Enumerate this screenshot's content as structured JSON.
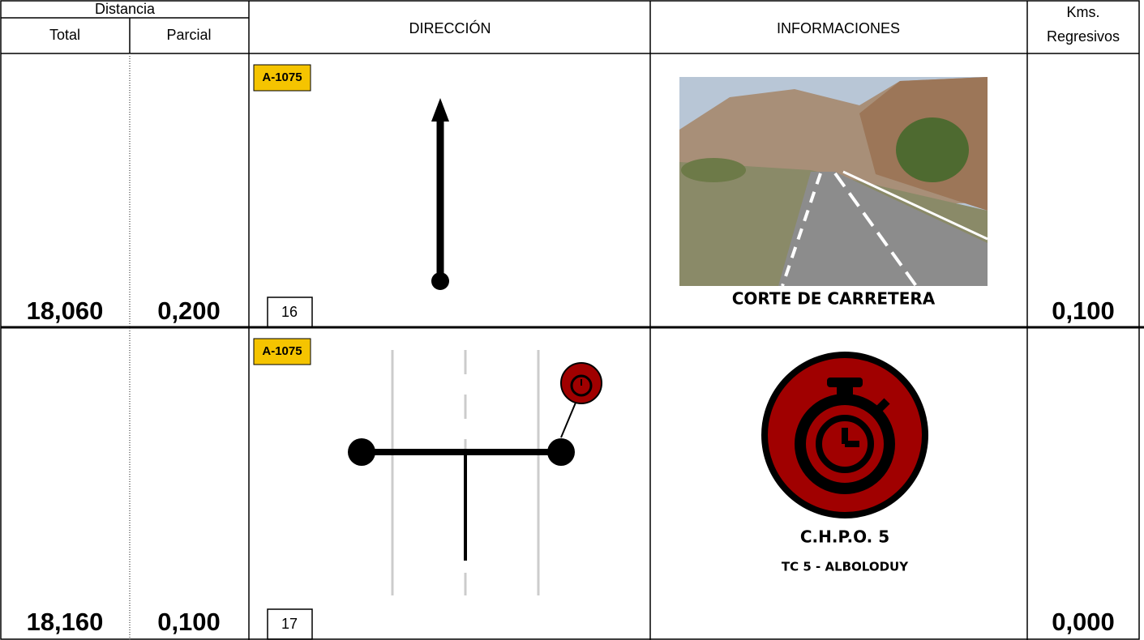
{
  "header": {
    "distancia": "Distancia",
    "total": "Total",
    "parcial": "Parcial",
    "direccion": "DIRECCIÓN",
    "informaciones": "INFORMACIONES",
    "kms": [
      "Kms.",
      "Regresivos"
    ]
  },
  "rows": [
    {
      "total": "18,060",
      "parcial": "0,200",
      "road": "A-1075",
      "number": "16",
      "info": [
        "CORTE DE CARRETERA"
      ],
      "kms": "0,100"
    },
    {
      "total": "18,160",
      "parcial": "0,100",
      "road": "A-1075",
      "number": "17",
      "info": [
        "C.H.P.O. 5",
        "TC 5 - ALBOLODUY"
      ],
      "kms": "0,000"
    }
  ]
}
